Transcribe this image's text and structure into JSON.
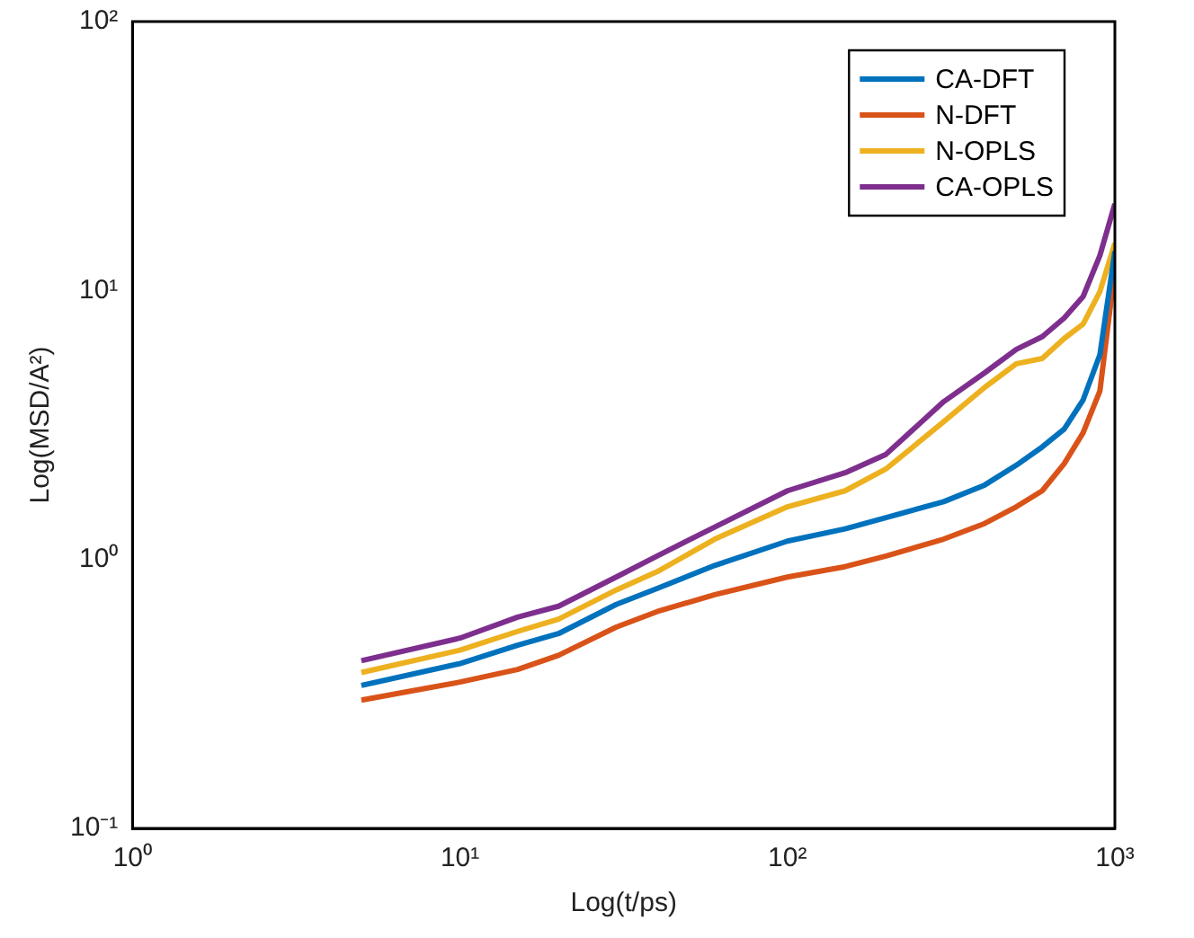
{
  "chart_data": {
    "type": "line",
    "xlabel": "Log(t/ps)",
    "ylabel": "Log(MSD/A²)",
    "log": "xy",
    "grid": false,
    "legend": "top right",
    "marker": "none",
    "line_style": "solid",
    "x": [
      5,
      10,
      15,
      20,
      30,
      40,
      60,
      100,
      150,
      200,
      300,
      400,
      500,
      600,
      700,
      800,
      900,
      1000
    ],
    "xlim": [
      1,
      1000
    ],
    "xticks": [
      {
        "value": 1,
        "label": "10⁰"
      },
      {
        "value": 10,
        "label": "10¹"
      },
      {
        "value": 100,
        "label": "10²"
      },
      {
        "value": 1000,
        "label": "10³"
      }
    ],
    "ylim": [
      0.1,
      100
    ],
    "yticks": [
      {
        "value": 0.1,
        "label": "10⁻¹"
      },
      {
        "value": 1,
        "label": "10⁰"
      },
      {
        "value": 10,
        "label": "10¹"
      },
      {
        "value": 100,
        "label": "10²"
      }
    ],
    "series": [
      {
        "name": "CA-DFT",
        "color": "#0072bd",
        "values": [
          0.34,
          0.41,
          0.48,
          0.53,
          0.68,
          0.78,
          0.95,
          1.17,
          1.3,
          1.43,
          1.64,
          1.89,
          2.24,
          2.62,
          3.05,
          3.92,
          5.77,
          14
        ]
      },
      {
        "name": "N-DFT",
        "color": "#d95319",
        "values": [
          0.3,
          0.35,
          0.39,
          0.44,
          0.56,
          0.64,
          0.74,
          0.86,
          0.94,
          1.03,
          1.19,
          1.36,
          1.57,
          1.8,
          2.27,
          2.96,
          4.23,
          12
        ]
      },
      {
        "name": "N-OPLS",
        "color": "#edb120",
        "values": [
          0.38,
          0.46,
          0.54,
          0.6,
          0.77,
          0.9,
          1.19,
          1.57,
          1.8,
          2.17,
          3.25,
          4.36,
          5.34,
          5.59,
          6.63,
          7.5,
          9.9,
          15
        ]
      },
      {
        "name": "CA-OPLS",
        "color": "#7e2f8e",
        "values": [
          0.42,
          0.51,
          0.61,
          0.67,
          0.86,
          1.03,
          1.32,
          1.8,
          2.1,
          2.46,
          3.86,
          4.94,
          6.04,
          6.73,
          7.9,
          9.5,
          13.5,
          21
        ]
      }
    ]
  }
}
